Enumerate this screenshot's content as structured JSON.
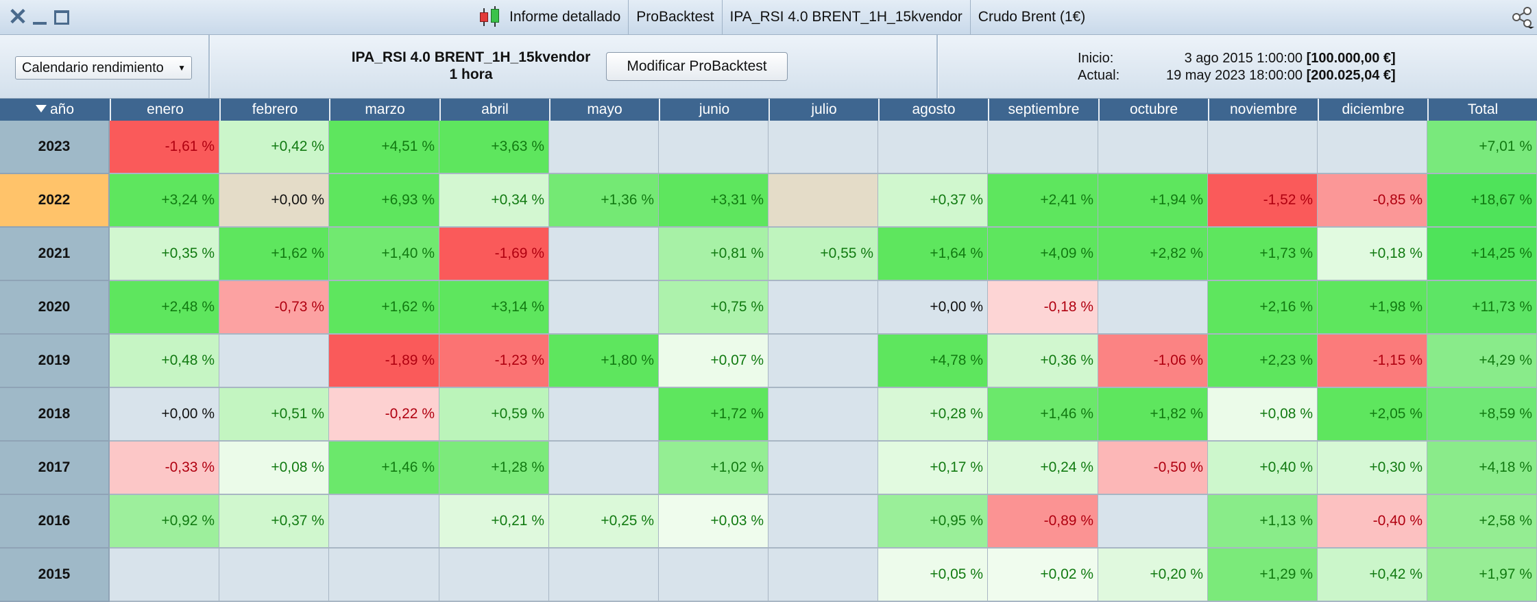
{
  "titlebar": {
    "tabs": [
      "Informe detallado",
      "ProBacktest",
      "IPA_RSI 4.0 BRENT_1H_15kvendor",
      "Crudo Brent (1€)"
    ]
  },
  "header": {
    "calendar_select": "Calendario rendimiento",
    "strategy_name": "IPA_RSI 4.0 BRENT_1H_15kvendor",
    "timeframe": "1 hora",
    "modify_button": "Modificar ProBacktest",
    "inicio_label": "Inicio:",
    "inicio_date": "3 ago 2015 1:00:00",
    "inicio_amount": "[100.000,00 €]",
    "actual_label": "Actual:",
    "actual_date": "19 may 2023 18:00:00",
    "actual_amount": "[200.025,04 €]"
  },
  "table": {
    "year_header": "año",
    "month_headers": [
      "enero",
      "febrero",
      "marzo",
      "abril",
      "mayo",
      "junio",
      "julio",
      "agosto",
      "septiembre",
      "octubre",
      "noviembre",
      "diciembre"
    ],
    "total_header": "Total",
    "selected_year": "2022",
    "rows": [
      {
        "year": "2023",
        "cells": [
          "-1,61 %",
          "+0,42 %",
          "+4,51 %",
          "+3,63 %",
          "",
          "",
          "",
          "",
          "",
          "",
          "",
          ""
        ],
        "total": "+7,01 %"
      },
      {
        "year": "2022",
        "cells": [
          "+3,24 %",
          "+0,00 %",
          "+6,93 %",
          "+0,34 %",
          "+1,36 %",
          "+3,31 %",
          "",
          "+0,37 %",
          "+2,41 %",
          "+1,94 %",
          "-1,52 %",
          "-0,85 %"
        ],
        "total": "+18,67 %"
      },
      {
        "year": "2021",
        "cells": [
          "+0,35 %",
          "+1,62 %",
          "+1,40 %",
          "-1,69 %",
          "",
          "+0,81 %",
          "+0,55 %",
          "+1,64 %",
          "+4,09 %",
          "+2,82 %",
          "+1,73 %",
          "+0,18 %"
        ],
        "total": "+14,25 %"
      },
      {
        "year": "2020",
        "cells": [
          "+2,48 %",
          "-0,73 %",
          "+1,62 %",
          "+3,14 %",
          "",
          "+0,75 %",
          "",
          "+0,00 %",
          "-0,18 %",
          "",
          "+2,16 %",
          "+1,98 %"
        ],
        "total": "+11,73 %"
      },
      {
        "year": "2019",
        "cells": [
          "+0,48 %",
          "",
          "-1,89 %",
          "-1,23 %",
          "+1,80 %",
          "+0,07 %",
          "",
          "+4,78 %",
          "+0,36 %",
          "-1,06 %",
          "+2,23 %",
          "-1,15 %"
        ],
        "total": "+4,29 %"
      },
      {
        "year": "2018",
        "cells": [
          "+0,00 %",
          "+0,51 %",
          "-0,22 %",
          "+0,59 %",
          "",
          "+1,72 %",
          "",
          "+0,28 %",
          "+1,46 %",
          "+1,82 %",
          "+0,08 %",
          "+2,05 %"
        ],
        "total": "+8,59 %"
      },
      {
        "year": "2017",
        "cells": [
          "-0,33 %",
          "+0,08 %",
          "+1,46 %",
          "+1,28 %",
          "",
          "+1,02 %",
          "",
          "+0,17 %",
          "+0,24 %",
          "-0,50 %",
          "+0,40 %",
          "+0,30 %"
        ],
        "total": "+4,18 %"
      },
      {
        "year": "2016",
        "cells": [
          "+0,92 %",
          "+0,37 %",
          "",
          "+0,21 %",
          "+0,25 %",
          "+0,03 %",
          "",
          "+0,95 %",
          "-0,89 %",
          "",
          "+1,13 %",
          "-0,40 %"
        ],
        "total": "+2,58 %"
      },
      {
        "year": "2015",
        "cells": [
          "",
          "",
          "",
          "",
          "",
          "",
          "",
          "+0,05 %",
          "+0,02 %",
          "+0,20 %",
          "+1,29 %",
          "+0,42 %"
        ],
        "total": "+1,97 %"
      }
    ]
  },
  "colors": {
    "header_bg": "#3e6690",
    "empty_cell": "#d8e3eb",
    "year_cell": "#9fb9c8",
    "selected_year": "#ffc36a",
    "positive_text": "#117a11",
    "negative_text": "#b00010"
  },
  "icons": {
    "close": "close-icon",
    "minimize": "minimize-icon",
    "maximize": "maximize-icon",
    "candlestick": "candlestick-icon",
    "share": "share-icon",
    "sort": "sort-down-icon"
  }
}
